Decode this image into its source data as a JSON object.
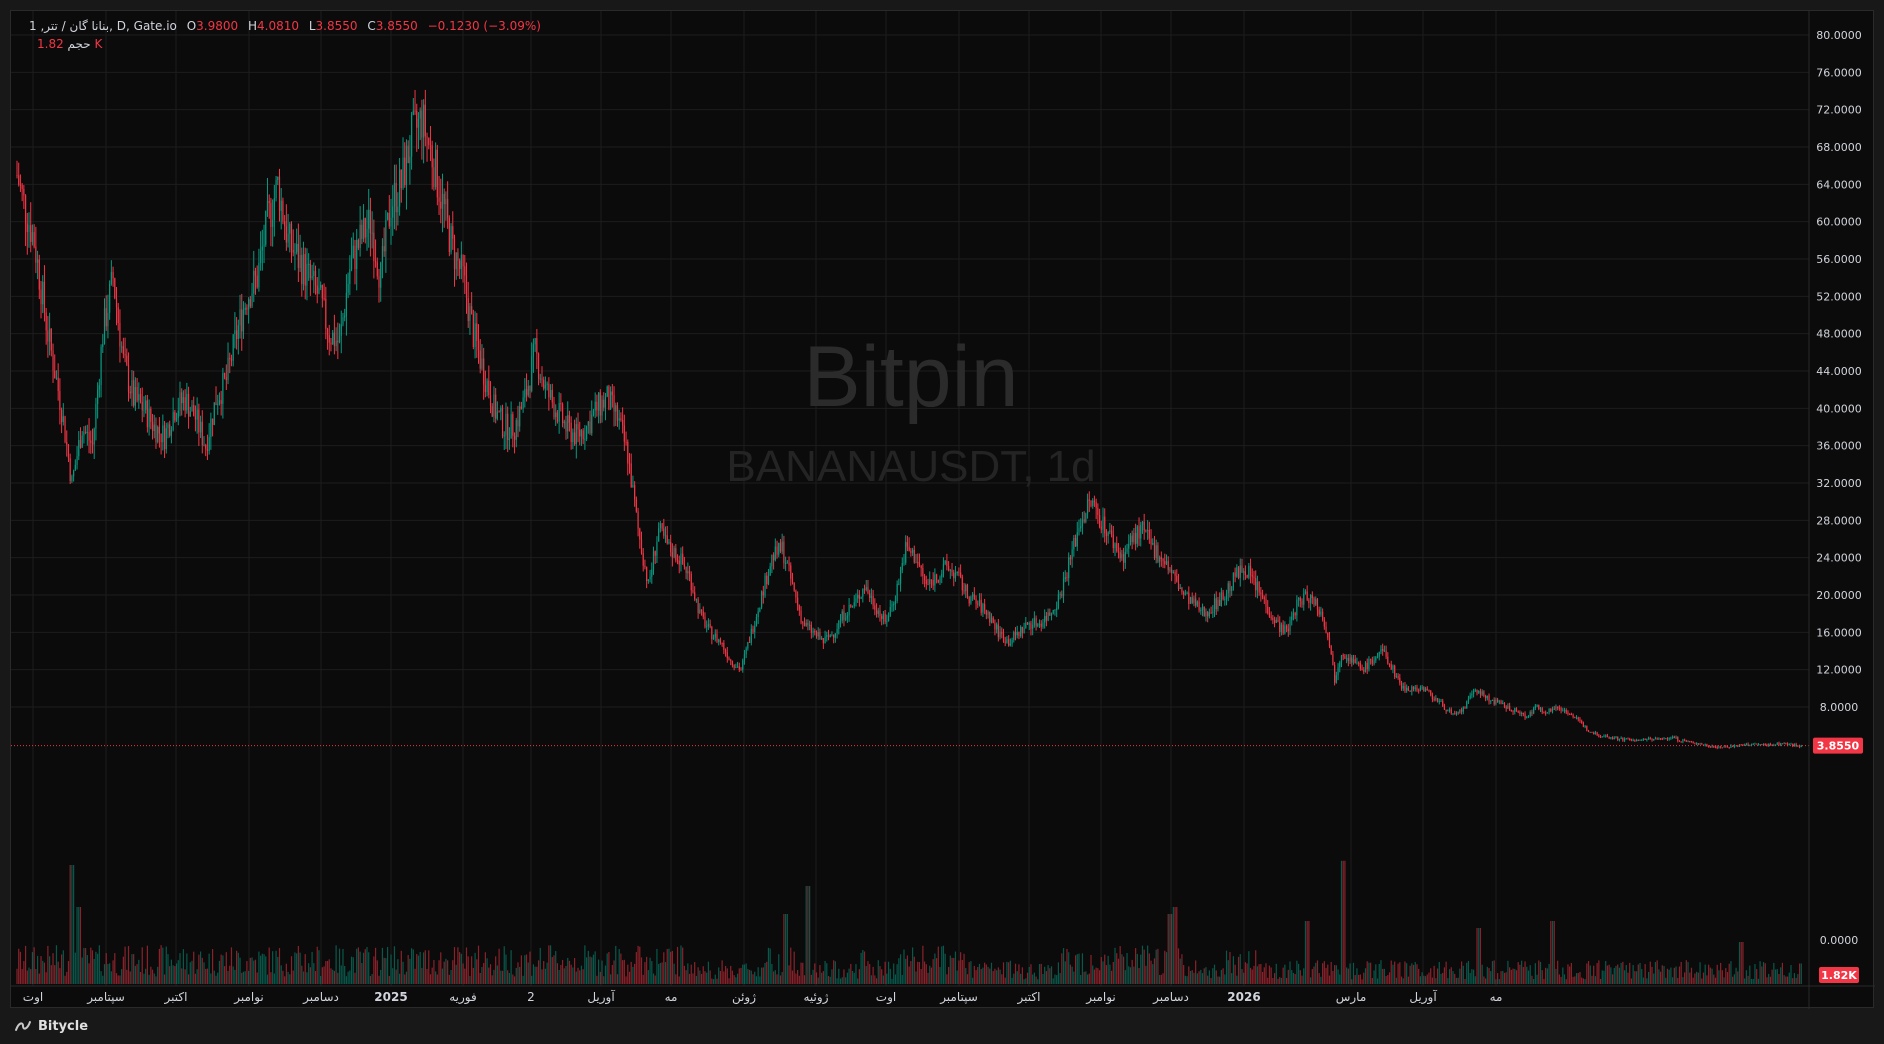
{
  "legend": {
    "symbol": "1 ,بنانا گان / تتر, D, Gate.io",
    "open_label": "O",
    "open": "3.9800",
    "high_label": "H",
    "high": "4.0810",
    "low_label": "L",
    "low": "3.8550",
    "close_label": "C",
    "close": "3.8550",
    "change": "−0.1230 (−3.09%)",
    "volume_label": "حجم",
    "volume": "1.82 K"
  },
  "watermark": {
    "brand": "Bitpin",
    "pair": "BANANAUSDT, 1d"
  },
  "price_axis": {
    "ticks": [
      "80.0000",
      "76.0000",
      "72.0000",
      "68.0000",
      "64.0000",
      "60.0000",
      "56.0000",
      "52.0000",
      "48.0000",
      "44.0000",
      "40.0000",
      "36.0000",
      "32.0000",
      "28.0000",
      "24.0000",
      "20.0000",
      "16.0000",
      "12.0000",
      "8.0000",
      "0.0000"
    ],
    "last_price_badge": "3.8550",
    "volume_badge": "1.82K"
  },
  "time_axis": {
    "labels": [
      "اوت",
      "سپتامبر",
      "اکتبر",
      "نوامبر",
      "دسامبر",
      "2025",
      "فوریه",
      "2",
      "آوریل",
      "مه",
      "ژوئن",
      "ژوئیه",
      "اوت",
      "سپتامبر",
      "اکتبر",
      "نوامبر",
      "دسامبر",
      "2026",
      "مارس",
      "آوریل",
      "مه"
    ]
  },
  "footer": {
    "brand": "Bitycle"
  },
  "colors": {
    "up": "#089981",
    "down": "#f23645",
    "background": "#0b0b0b",
    "grid": "#1d1d1d"
  },
  "chart_data": {
    "type": "candlestick",
    "symbol": "BANANAUSDT",
    "interval": "1D",
    "exchange": "Gate.io",
    "y_range": [
      0,
      82
    ],
    "last_price": 3.855,
    "grid": true,
    "anchors": [
      [
        0,
        65
      ],
      [
        4,
        62
      ],
      [
        10,
        58
      ],
      [
        18,
        48
      ],
      [
        26,
        40
      ],
      [
        32,
        32
      ],
      [
        38,
        38
      ],
      [
        44,
        36
      ],
      [
        50,
        48
      ],
      [
        56,
        54
      ],
      [
        62,
        45
      ],
      [
        68,
        41
      ],
      [
        74,
        40
      ],
      [
        80,
        38
      ],
      [
        86,
        37
      ],
      [
        92,
        40
      ],
      [
        98,
        41
      ],
      [
        104,
        39
      ],
      [
        110,
        36
      ],
      [
        116,
        41
      ],
      [
        122,
        43
      ],
      [
        128,
        48
      ],
      [
        134,
        52
      ],
      [
        140,
        54
      ],
      [
        146,
        60
      ],
      [
        152,
        64
      ],
      [
        158,
        58
      ],
      [
        164,
        56
      ],
      [
        170,
        54
      ],
      [
        176,
        52
      ],
      [
        182,
        48
      ],
      [
        188,
        47
      ],
      [
        194,
        55
      ],
      [
        200,
        58
      ],
      [
        206,
        60
      ],
      [
        212,
        54
      ],
      [
        218,
        62
      ],
      [
        224,
        64
      ],
      [
        230,
        69
      ],
      [
        236,
        71
      ],
      [
        242,
        67
      ],
      [
        248,
        62
      ],
      [
        254,
        57
      ],
      [
        260,
        54
      ],
      [
        266,
        48
      ],
      [
        272,
        44
      ],
      [
        278,
        40
      ],
      [
        284,
        38
      ],
      [
        290,
        38
      ],
      [
        296,
        41
      ],
      [
        302,
        46
      ],
      [
        308,
        42
      ],
      [
        314,
        40
      ],
      [
        320,
        38
      ],
      [
        326,
        37
      ],
      [
        332,
        38
      ],
      [
        338,
        40
      ],
      [
        344,
        41
      ],
      [
        350,
        39
      ],
      [
        356,
        35
      ],
      [
        362,
        27
      ],
      [
        368,
        21
      ],
      [
        374,
        27
      ],
      [
        380,
        25
      ],
      [
        386,
        24
      ],
      [
        392,
        22
      ],
      [
        398,
        18
      ],
      [
        404,
        16
      ],
      [
        410,
        15
      ],
      [
        416,
        13
      ],
      [
        422,
        12
      ],
      [
        428,
        16
      ],
      [
        434,
        20
      ],
      [
        440,
        24
      ],
      [
        446,
        25
      ],
      [
        452,
        21
      ],
      [
        458,
        17
      ],
      [
        464,
        16
      ],
      [
        470,
        15
      ],
      [
        476,
        16
      ],
      [
        482,
        18
      ],
      [
        488,
        19
      ],
      [
        494,
        21
      ],
      [
        500,
        19
      ],
      [
        506,
        17
      ],
      [
        512,
        20
      ],
      [
        518,
        25
      ],
      [
        524,
        24
      ],
      [
        530,
        21
      ],
      [
        536,
        22
      ],
      [
        542,
        23
      ],
      [
        548,
        22
      ],
      [
        554,
        20
      ],
      [
        560,
        19
      ],
      [
        566,
        18
      ],
      [
        572,
        16
      ],
      [
        578,
        15
      ],
      [
        584,
        16
      ],
      [
        590,
        17
      ],
      [
        596,
        17
      ],
      [
        602,
        18
      ],
      [
        608,
        20
      ],
      [
        614,
        24
      ],
      [
        620,
        28
      ],
      [
        626,
        30
      ],
      [
        632,
        28
      ],
      [
        638,
        26
      ],
      [
        644,
        24
      ],
      [
        650,
        26
      ],
      [
        656,
        27
      ],
      [
        662,
        25
      ],
      [
        668,
        24
      ],
      [
        674,
        22
      ],
      [
        680,
        20
      ],
      [
        686,
        19
      ],
      [
        692,
        18
      ],
      [
        698,
        19
      ],
      [
        704,
        20
      ],
      [
        710,
        22
      ],
      [
        716,
        23
      ],
      [
        722,
        21
      ],
      [
        728,
        19
      ],
      [
        734,
        17
      ],
      [
        740,
        16
      ],
      [
        746,
        19
      ],
      [
        752,
        20
      ],
      [
        758,
        19
      ],
      [
        764,
        16
      ],
      [
        768,
        11
      ],
      [
        772,
        14
      ],
      [
        778,
        13
      ],
      [
        784,
        12
      ],
      [
        790,
        13
      ],
      [
        796,
        14
      ],
      [
        802,
        12
      ],
      [
        808,
        10
      ],
      [
        814,
        10
      ],
      [
        820,
        10
      ],
      [
        826,
        9
      ],
      [
        832,
        8
      ],
      [
        838,
        7
      ],
      [
        844,
        8
      ],
      [
        850,
        10
      ],
      [
        856,
        9
      ],
      [
        862,
        8.5
      ],
      [
        868,
        8
      ],
      [
        874,
        7.5
      ],
      [
        880,
        7
      ],
      [
        886,
        8
      ],
      [
        892,
        7.5
      ],
      [
        898,
        8
      ],
      [
        904,
        7.5
      ],
      [
        910,
        6.5
      ],
      [
        916,
        5.5
      ],
      [
        922,
        5
      ],
      [
        928,
        4.8
      ],
      [
        934,
        4.6
      ],
      [
        940,
        4.5
      ],
      [
        946,
        4.4
      ],
      [
        952,
        4.6
      ],
      [
        958,
        4.5
      ],
      [
        964,
        4.8
      ],
      [
        970,
        4.4
      ],
      [
        976,
        4.2
      ],
      [
        982,
        4.0
      ],
      [
        988,
        3.8
      ],
      [
        994,
        3.7
      ],
      [
        1000,
        3.8
      ],
      [
        1006,
        3.9
      ],
      [
        1012,
        4.0
      ],
      [
        1018,
        3.95
      ],
      [
        1024,
        4.0
      ],
      [
        1030,
        4.1
      ],
      [
        1036,
        3.9
      ],
      [
        1040,
        3.86
      ]
    ],
    "volume_spikes": [
      [
        36,
        0.55
      ],
      [
        32,
        0.85
      ],
      [
        448,
        0.5
      ],
      [
        461,
        0.7
      ],
      [
        672,
        0.5
      ],
      [
        675,
        0.55
      ],
      [
        752,
        0.45
      ],
      [
        773,
        0.88
      ],
      [
        852,
        0.4
      ],
      [
        895,
        0.45
      ],
      [
        1005,
        0.3
      ]
    ]
  }
}
